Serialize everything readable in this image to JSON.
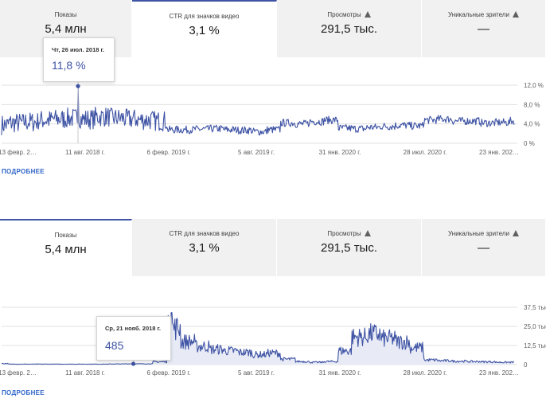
{
  "panel_top": {
    "metrics": [
      {
        "label": "Показы",
        "value": "5,4 млн",
        "warning": false,
        "active": false
      },
      {
        "label": "CTR для значков видео",
        "value": "3,1 %",
        "warning": false,
        "active": true
      },
      {
        "label": "Просмотры",
        "value": "291,5 тыс.",
        "warning": true,
        "active": false
      },
      {
        "label": "Уникальные зрители",
        "value": "—",
        "warning": true,
        "active": false
      }
    ],
    "tooltip": {
      "date": "Чт, 26 июл. 2018 г.",
      "value": "11,8 %"
    },
    "more_link": "ПОДРОБНЕЕ"
  },
  "panel_bottom": {
    "metrics": [
      {
        "label": "Показы",
        "value": "5,4 млн",
        "warning": false,
        "active": true
      },
      {
        "label": "CTR для значков видео",
        "value": "3,1 %",
        "warning": false,
        "active": false
      },
      {
        "label": "Просмотры",
        "value": "291,5 тыс.",
        "warning": true,
        "active": false
      },
      {
        "label": "Уникальные зрители",
        "value": "—",
        "warning": true,
        "active": false
      }
    ],
    "tooltip": {
      "date": "Ср, 21 нояб. 2018 г.",
      "value": "485"
    },
    "more_link": "ПОДРОБНЕЕ"
  },
  "colors": {
    "line": "#3e53a4",
    "fill": "#e8ebf6",
    "grid": "#e0e0e0",
    "accent": "#3e53a4",
    "link": "#2f64c8",
    "tab_bg": "#f1f1f1"
  },
  "icons": {
    "warning": "warning-triangle-icon"
  },
  "chart_data": [
    {
      "type": "line",
      "series": [
        {
          "values_summary_by_month": true
        }
      ],
      "x_ticks": [
        "13 февр. 2…",
        "11 авг. 2018 г.",
        "6 февр. 2019 г.",
        "5 авг. 2019 г.",
        "31 янв. 2020 г.",
        "28 июл. 2020 г.",
        "23 янв. 202…"
      ],
      "y_ticks": [
        "0 %",
        "4,0 %",
        "8,0 %",
        "12,0 %"
      ],
      "ylim": [
        0,
        12
      ],
      "grid": true,
      "monthly_levels": [
        {
          "month": "2018-02",
          "value": 3.8
        },
        {
          "month": "2018-03",
          "value": 4.2
        },
        {
          "month": "2018-04",
          "value": 4.4
        },
        {
          "month": "2018-05",
          "value": 4.8
        },
        {
          "month": "2018-06",
          "value": 5.0
        },
        {
          "month": "2018-07",
          "value": 5.2
        },
        {
          "month": "2018-08",
          "value": 5.0
        },
        {
          "month": "2018-09",
          "value": 5.5
        },
        {
          "month": "2018-10",
          "value": 5.2
        },
        {
          "month": "2018-11",
          "value": 5.0
        },
        {
          "month": "2018-12",
          "value": 4.8
        },
        {
          "month": "2019-01",
          "value": 4.6
        },
        {
          "month": "2019-02",
          "value": 2.8
        },
        {
          "month": "2019-03",
          "value": 2.8
        },
        {
          "month": "2019-04",
          "value": 2.9
        },
        {
          "month": "2019-05",
          "value": 3.0
        },
        {
          "month": "2019-06",
          "value": 2.8
        },
        {
          "month": "2019-07",
          "value": 2.7
        },
        {
          "month": "2019-08",
          "value": 2.4
        },
        {
          "month": "2019-09",
          "value": 2.8
        },
        {
          "month": "2019-10",
          "value": 4.2
        },
        {
          "month": "2019-11",
          "value": 4.0
        },
        {
          "month": "2019-12",
          "value": 4.5
        },
        {
          "month": "2020-01",
          "value": 4.8
        },
        {
          "month": "2020-02",
          "value": 3.1
        },
        {
          "month": "2020-03",
          "value": 3.0
        },
        {
          "month": "2020-04",
          "value": 3.3
        },
        {
          "month": "2020-05",
          "value": 3.5
        },
        {
          "month": "2020-06",
          "value": 3.7
        },
        {
          "month": "2020-07",
          "value": 3.6
        },
        {
          "month": "2020-08",
          "value": 4.8
        },
        {
          "month": "2020-09",
          "value": 5.0
        },
        {
          "month": "2020-10",
          "value": 4.6
        },
        {
          "month": "2020-11",
          "value": 4.6
        },
        {
          "month": "2020-12",
          "value": 4.2
        },
        {
          "month": "2021-01",
          "value": 4.3
        },
        {
          "month": "2021-02",
          "value": 4.6
        }
      ],
      "highlight": {
        "date": "2018-07-26",
        "value": 11.8
      }
    },
    {
      "type": "area",
      "x_ticks": [
        "13 февр. 2…",
        "11 авг. 2018 г.",
        "6 февр. 2019 г.",
        "5 авг. 2019 г.",
        "31 янв. 2020 г.",
        "28 июл. 2020 г.",
        "23 янв. 202…"
      ],
      "y_ticks": [
        "0",
        "12,5 тыс.",
        "25,0 тыс.",
        "37,5 тыс."
      ],
      "ylim": [
        0,
        37500
      ],
      "grid": true,
      "monthly_levels": [
        {
          "month": "2018-02",
          "value": 700
        },
        {
          "month": "2018-03",
          "value": 300
        },
        {
          "month": "2018-04",
          "value": 300
        },
        {
          "month": "2018-05",
          "value": 300
        },
        {
          "month": "2018-06",
          "value": 300
        },
        {
          "month": "2018-07",
          "value": 300
        },
        {
          "month": "2018-08",
          "value": 300
        },
        {
          "month": "2018-09",
          "value": 300
        },
        {
          "month": "2018-10",
          "value": 400
        },
        {
          "month": "2018-11",
          "value": 500
        },
        {
          "month": "2018-12",
          "value": 500
        },
        {
          "month": "2019-01",
          "value": 1800
        },
        {
          "month": "2019-02",
          "value": 24000
        },
        {
          "month": "2019-03",
          "value": 15000
        },
        {
          "month": "2019-04",
          "value": 12000
        },
        {
          "month": "2019-05",
          "value": 10000
        },
        {
          "month": "2019-06",
          "value": 9000
        },
        {
          "month": "2019-07",
          "value": 8000
        },
        {
          "month": "2019-08",
          "value": 6500
        },
        {
          "month": "2019-09",
          "value": 7500
        },
        {
          "month": "2019-10",
          "value": 3500
        },
        {
          "month": "2019-11",
          "value": 2000
        },
        {
          "month": "2019-12",
          "value": 1500
        },
        {
          "month": "2020-01",
          "value": 2000
        },
        {
          "month": "2020-02",
          "value": 9000
        },
        {
          "month": "2020-03",
          "value": 18000
        },
        {
          "month": "2020-04",
          "value": 20000
        },
        {
          "month": "2020-05",
          "value": 17000
        },
        {
          "month": "2020-06",
          "value": 15000
        },
        {
          "month": "2020-07",
          "value": 11000
        },
        {
          "month": "2020-08",
          "value": 3000
        },
        {
          "month": "2020-09",
          "value": 2500
        },
        {
          "month": "2020-10",
          "value": 2200
        },
        {
          "month": "2020-11",
          "value": 2000
        },
        {
          "month": "2020-12",
          "value": 1800
        },
        {
          "month": "2021-01",
          "value": 1500
        },
        {
          "month": "2021-02",
          "value": 1500
        }
      ],
      "spike": {
        "date": "2019-02-10",
        "value": 34000
      },
      "highlight": {
        "date": "2018-11-21",
        "value": 485
      }
    }
  ]
}
